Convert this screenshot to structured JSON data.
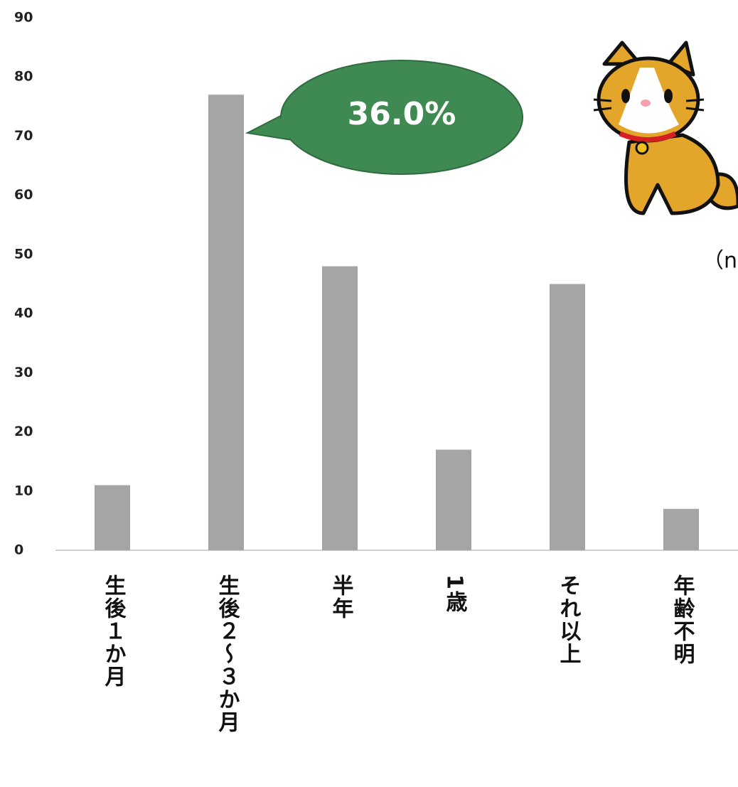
{
  "chart_data": {
    "type": "bar",
    "categories": [
      "生後１か月",
      "生後２～３か月",
      "半年",
      "1歳",
      "それ以上",
      "年齢不明"
    ],
    "values": [
      11,
      77,
      48,
      17,
      45,
      7
    ],
    "color": "#a5a5a5",
    "ylim": [
      0,
      90
    ],
    "yticks": [
      0,
      10,
      20,
      30,
      40,
      50,
      60,
      70,
      80,
      90
    ],
    "grid": false,
    "annotations": [
      "36.0%",
      "（n="
    ]
  }
}
